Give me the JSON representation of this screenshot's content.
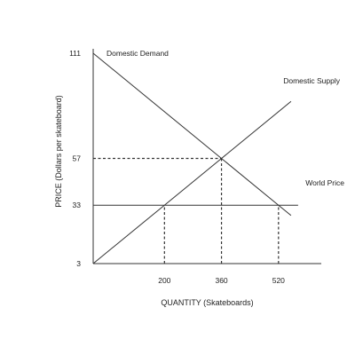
{
  "chart_data": {
    "type": "line",
    "xlabel": "QUANTITY (Skateboards)",
    "ylabel": "PRICE (Dollars per skateboard)",
    "xlim": [
      0,
      640
    ],
    "ylim": [
      3,
      111
    ],
    "x_ticks": [
      200,
      360,
      520
    ],
    "y_ticks": [
      3,
      33,
      57,
      111
    ],
    "grid": false,
    "series": [
      {
        "name": "Domestic Demand",
        "x": [
          0,
          520,
          555
        ],
        "y": [
          111,
          33,
          27.75
        ]
      },
      {
        "name": "Domestic Supply",
        "x": [
          0,
          200,
          360,
          555
        ],
        "y": [
          3,
          33,
          57,
          86.25
        ]
      },
      {
        "name": "World Price",
        "x": [
          0,
          575
        ],
        "y": [
          33,
          33
        ]
      }
    ],
    "reference_lines": [
      {
        "x": [
          0,
          360
        ],
        "y": [
          57,
          57
        ]
      },
      {
        "x": [
          360,
          360
        ],
        "y": [
          3,
          57
        ]
      },
      {
        "x": [
          200,
          200
        ],
        "y": [
          3,
          33
        ]
      },
      {
        "x": [
          520,
          520
        ],
        "y": [
          3,
          33
        ]
      }
    ],
    "colors": {
      "line": "#333333",
      "axis": "#333333",
      "text": "#222222"
    }
  }
}
